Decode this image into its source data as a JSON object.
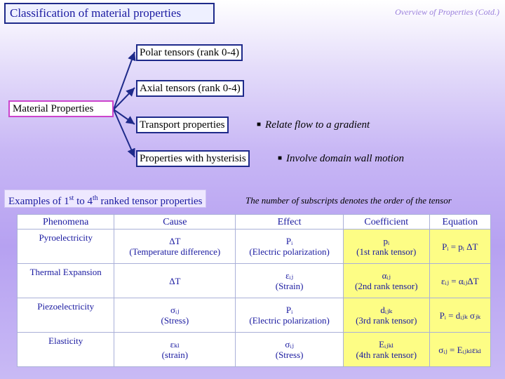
{
  "header": {
    "title": "Classification of material properties",
    "subtitle": "Overview of Properties (Cotd.)"
  },
  "tree": {
    "root": "Material Properties",
    "nodes": [
      {
        "label": "Polar tensors (rank 0-4)"
      },
      {
        "label": "Axial tensors (rank 0-4)"
      },
      {
        "label": "Transport properties",
        "note": "Relate flow to a gradient"
      },
      {
        "label": "Properties with hysterisis",
        "note": "Involve domain wall motion"
      }
    ]
  },
  "examples": {
    "prefix": "Examples of 1",
    "sup1": "st",
    "mid": " to 4",
    "sup2": "th",
    "suffix": " ranked tensor properties",
    "note": "The number of subscripts denotes the order of the tensor"
  },
  "table": {
    "headers": [
      "Phenomena",
      "Cause",
      "Effect",
      "Coefficient",
      "Equation"
    ],
    "rows": [
      {
        "phenomena": "Pyroelectricity",
        "cause": [
          "ΔT",
          "(Temperature difference)"
        ],
        "effect": [
          "Pᵢ",
          "(Electric polarization)"
        ],
        "coefficient": [
          "pᵢ",
          "(1st rank tensor)"
        ],
        "equation": "Pᵢ = pᵢ ΔT"
      },
      {
        "phenomena": "Thermal Expansion",
        "cause": [
          "ΔT",
          ""
        ],
        "effect": [
          "εᵢⱼ",
          "(Strain)"
        ],
        "coefficient": [
          "αᵢⱼ",
          "(2nd rank tensor)"
        ],
        "equation": "εᵢⱼ = αᵢⱼΔT"
      },
      {
        "phenomena": "Piezoelectricity",
        "cause": [
          "σᵢⱼ",
          "(Stress)"
        ],
        "effect": [
          "Pᵢ",
          "(Electric polarization)"
        ],
        "coefficient": [
          "dᵢⱼₖ",
          "(3rd rank tensor)"
        ],
        "equation": "Pᵢ = dᵢⱼₖ σⱼₖ"
      },
      {
        "phenomena": "Elasticity",
        "cause": [
          "εₖₗ",
          "(strain)"
        ],
        "effect": [
          "σᵢⱼ",
          "(Stress)"
        ],
        "coefficient": [
          "Eᵢⱼₖₗ",
          "(4th rank tensor)"
        ],
        "equation": "σᵢⱼ = Eᵢⱼₖₗεₖₗ"
      }
    ]
  },
  "colors": {
    "accent": "#1a1aa0",
    "highlight": "#fdfd85",
    "tree_line": "#1e2a8a"
  }
}
